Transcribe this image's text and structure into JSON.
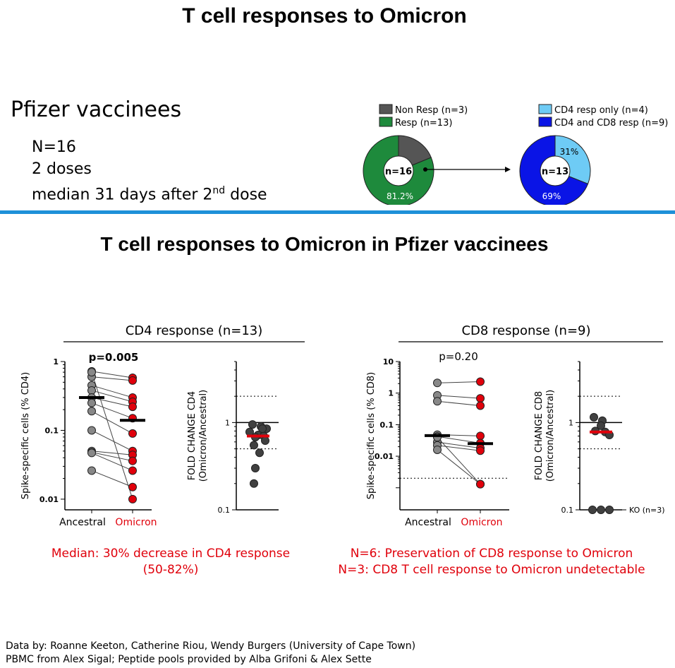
{
  "page_title": "T cell responses to Omicron",
  "section_title": "T cell responses to Omicron in Pfizer vaccinees",
  "cohort": {
    "name": "Pfizer vaccinees",
    "n": "N=16",
    "doses": "2 doses",
    "timing_pre": "median 31 days after 2",
    "timing_sup": "nd",
    "timing_post": " dose"
  },
  "colors": {
    "divider": "#1e90d8",
    "red": "#e0000b",
    "grey": "#888888",
    "dark": "#404040"
  },
  "pie_legends": {
    "left": [
      "Non Resp (n=3)",
      "Resp (n=13)"
    ],
    "right": [
      "CD4 resp only (n=4)",
      "CD4 and CD8 resp (n=9)"
    ]
  },
  "chart_data": [
    {
      "type": "pie",
      "center_label": "n=16",
      "slices": [
        {
          "label": "Non Resp (n=3)",
          "value": 18.8,
          "color": "#555555"
        },
        {
          "label": "Resp (n=13)",
          "value": 81.2,
          "color": "#1e8a3c"
        }
      ],
      "slice_labels": [
        "81.2%"
      ]
    },
    {
      "type": "pie",
      "center_label": "n=13",
      "slices": [
        {
          "label": "CD4 resp only (n=4)",
          "value": 31,
          "color": "#6ecbf5"
        },
        {
          "label": "CD4 and CD8 resp (n=9)",
          "value": 69,
          "color": "#0a14e6"
        }
      ],
      "slice_labels": [
        "31%",
        "69%"
      ]
    },
    {
      "type": "scatter",
      "title": "CD4 response (n=13)",
      "ylabel": "Spike-specific cells (% CD4)",
      "yscale": "log",
      "ylim": [
        0.007,
        1
      ],
      "yticks": [
        "1",
        "0.1",
        "0.01"
      ],
      "categories": [
        "Ancestral",
        "Omicron"
      ],
      "annotation": "p=0.005",
      "medians": [
        0.3,
        0.14
      ],
      "pairs": [
        [
          0.72,
          0.58
        ],
        [
          0.6,
          0.53
        ],
        [
          0.45,
          0.3
        ],
        [
          0.38,
          0.26
        ],
        [
          0.3,
          0.22
        ],
        [
          0.25,
          0.15
        ],
        [
          0.19,
          0.09
        ],
        [
          0.1,
          0.05
        ],
        [
          0.05,
          0.044
        ],
        [
          0.048,
          0.036
        ],
        [
          0.047,
          0.026
        ],
        [
          0.026,
          0.015
        ],
        [
          0.7,
          0.01
        ]
      ]
    },
    {
      "type": "scatter",
      "title": "",
      "ylabel": "FOLD CHANGE CD4 (Omicron/Ancestral)",
      "yscale": "log",
      "ylim": [
        0.1,
        5
      ],
      "yticks": [
        "1",
        "0.1"
      ],
      "reference_lines": [
        2,
        0.5
      ],
      "median": 0.7,
      "values": [
        0.95,
        0.9,
        0.85,
        0.78,
        0.72,
        0.7,
        0.68,
        0.62,
        0.55,
        0.45,
        0.3,
        0.2,
        0.85
      ]
    },
    {
      "type": "scatter",
      "title": "CD8 response (n=9)",
      "ylabel": "Spike-specific cells (% CD8)",
      "yscale": "log",
      "ylim": [
        0.0002,
        10
      ],
      "yticks": [
        "10",
        "1",
        "0.1",
        "0.01"
      ],
      "categories": [
        "Ancestral",
        "Omicron"
      ],
      "annotation": "p=0.20",
      "detection_limit": 0.002,
      "medians": [
        0.045,
        0.025
      ],
      "pairs": [
        [
          2.1,
          2.3
        ],
        [
          0.85,
          0.68
        ],
        [
          0.55,
          0.4
        ],
        [
          0.048,
          0.044
        ],
        [
          0.042,
          0.026
        ],
        [
          0.028,
          0.018
        ],
        [
          0.022,
          0.015
        ],
        [
          0.016,
          0.0013
        ],
        [
          0.04,
          0.0013
        ]
      ]
    },
    {
      "type": "scatter",
      "title": "",
      "ylabel": "FOLD CHANGE CD8 (Omicron/Ancestral)",
      "yscale": "log",
      "ylim": [
        0.1,
        5
      ],
      "yticks": [
        "1",
        "0.1"
      ],
      "reference_lines": [
        2,
        0.5
      ],
      "median": 0.78,
      "values": [
        1.15,
        1.05,
        0.92,
        0.8,
        0.78,
        0.72,
        0.1,
        0.1,
        0.1
      ],
      "annotation": "KO (n=3)"
    }
  ],
  "notes": {
    "cd4_line1": "Median: 30% decrease in CD4 response",
    "cd4_line2": "(50-82%)",
    "cd8_line1": "N=6: Preservation of CD8 response to Omicron",
    "cd8_line2": "N=3: CD8 T cell response to Omicron undetectable"
  },
  "footer": {
    "line1": "Data by: Roanne Keeton, Catherine Riou, Wendy Burgers (University of Cape Town)",
    "line2": "PBMC from Alex Sigal; Peptide pools provided by Alba Grifoni & Alex Sette"
  }
}
